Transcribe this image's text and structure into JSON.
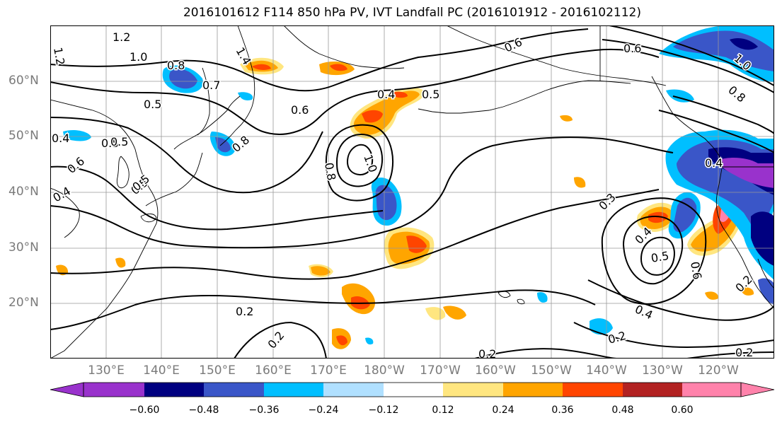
{
  "title": "2016101612 F114 850 hPa PV, IVT Landfall PC (2016101912 - 2016102112)",
  "lat_labels": [
    "60°N",
    "50°N",
    "40°N",
    "30°N",
    "20°N"
  ],
  "lon_labels": [
    "130°E",
    "140°E",
    "150°E",
    "160°E",
    "170°E",
    "180°W",
    "170°W",
    "160°W",
    "150°W",
    "140°W",
    "130°W",
    "120°W"
  ],
  "colorbar": {
    "colors": [
      "#9932cc",
      "#000080",
      "#3a56c8",
      "#00bfff",
      "#b0e0ff",
      "#ffffff",
      "#ffe680",
      "#ffa500",
      "#ff4500",
      "#b22222",
      "#ff82ab"
    ],
    "tick_labels": [
      "−0.60",
      "−0.48",
      "−0.36",
      "−0.24",
      "−0.12",
      "0.12",
      "0.24",
      "0.36",
      "0.48",
      "0.60"
    ]
  },
  "contour_labels": [
    "1.2",
    "1.2",
    "1.0",
    "1.4",
    "0.8",
    "0.5",
    "0.4",
    "0.5",
    "0.6",
    "0.4",
    "0.5",
    "0.6",
    "0.7",
    "1.0",
    "0.8",
    "0.8",
    "0.4",
    "0.5",
    "0.6",
    "0.6",
    "1.0",
    "0.8",
    "0.5",
    "0.3",
    "0.4",
    "0.5",
    "0.6",
    "0.2",
    "0.4",
    "0.2",
    "0.2",
    "0.2",
    "0.2",
    "0.2",
    "0.5",
    "0.4"
  ]
}
